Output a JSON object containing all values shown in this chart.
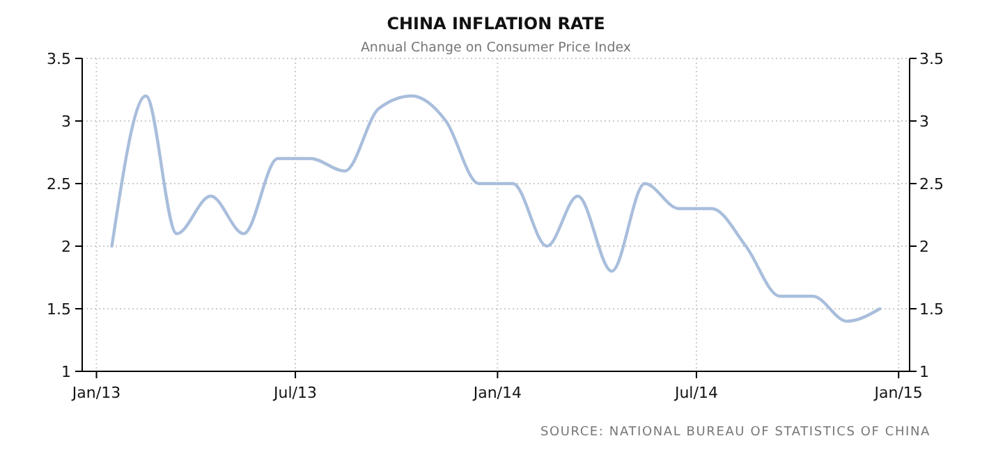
{
  "chart_data": {
    "type": "line",
    "title": "CHINA INFLATION RATE",
    "subtitle": "Annual Change on Consumer Price Index",
    "annotations": [
      "SOURCE: NATIONAL BUREAU OF STATISTICS OF CHINA"
    ],
    "x": [
      "2013-01-15",
      "2013-02-15",
      "2013-03-15",
      "2013-04-15",
      "2013-05-15",
      "2013-06-15",
      "2013-07-15",
      "2013-08-15",
      "2013-09-15",
      "2013-10-15",
      "2013-11-15",
      "2013-12-15",
      "2014-01-15",
      "2014-02-15",
      "2014-03-15",
      "2014-04-15",
      "2014-05-15",
      "2014-06-15",
      "2014-07-15",
      "2014-08-15",
      "2014-09-15",
      "2014-10-15",
      "2014-11-15",
      "2014-12-15"
    ],
    "series": [
      {
        "color": "#a9bedc",
        "values": [
          2.0,
          3.2,
          2.1,
          2.4,
          2.1,
          2.7,
          2.7,
          2.6,
          3.1,
          3.2,
          3.0,
          2.5,
          2.5,
          2.0,
          2.4,
          1.8,
          2.5,
          2.3,
          2.3,
          2.0,
          1.6,
          1.6,
          1.4,
          1.5
        ]
      }
    ],
    "xlim": [
      "2012-12-19",
      "2015-01-11"
    ],
    "xticks": [
      {
        "value": "2013-01-01",
        "label": "Jan/13"
      },
      {
        "value": "2013-07-01",
        "label": "Jul/13"
      },
      {
        "value": "2014-01-01",
        "label": "Jan/14"
      },
      {
        "value": "2014-07-01",
        "label": "Jul/14"
      },
      {
        "value": "2015-01-01",
        "label": "Jan/15"
      }
    ],
    "ylim": [
      1,
      3.5
    ],
    "yticks": [
      1,
      1.5,
      2,
      2.5,
      3,
      3.5
    ],
    "y2lim": [
      1,
      3.5
    ],
    "y2ticks": [
      1,
      1.5,
      2,
      2.5,
      3,
      3.5
    ],
    "grid": true,
    "line_style": "solid",
    "marker": "none"
  }
}
